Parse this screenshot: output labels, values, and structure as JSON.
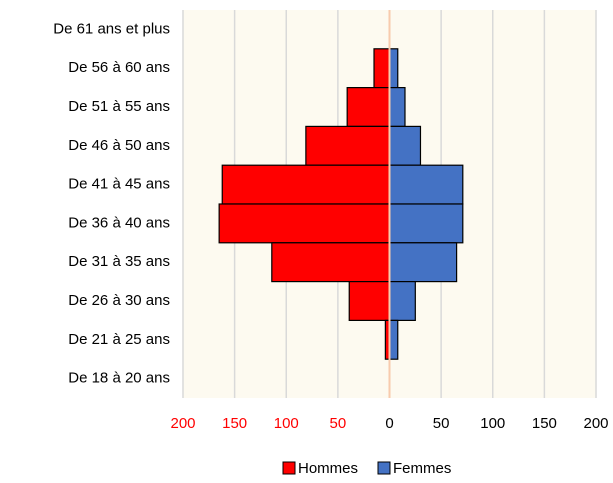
{
  "chart_data": {
    "type": "pyramid",
    "categories": [
      "De 61 ans et plus",
      "De 56 à 60 ans",
      "De 51 à 55 ans",
      "De 46 à 50 ans",
      "De 41 à 45 ans",
      "De 36 à 40 ans",
      "De 31 à 35 ans",
      "De 26 à 30 ans",
      "De 21 à 25 ans",
      "De 18 à 20 ans"
    ],
    "series": [
      {
        "name": "Hommes",
        "color": "#ff0000",
        "values": [
          0,
          -15,
          -41,
          -81,
          -162,
          -165,
          -114,
          -39,
          -4,
          0
        ]
      },
      {
        "name": "Femmes",
        "color": "#4472c4",
        "values": [
          0,
          8,
          15,
          30,
          71,
          71,
          65,
          25,
          8,
          0
        ]
      }
    ],
    "xlim": [
      -200,
      200
    ],
    "xticks": [
      {
        "value": -200,
        "label": "200"
      },
      {
        "value": -150,
        "label": "150"
      },
      {
        "value": -100,
        "label": "100"
      },
      {
        "value": -50,
        "label": "50"
      },
      0,
      50,
      100,
      150,
      200
    ],
    "grid": true,
    "legend": "bottom"
  }
}
